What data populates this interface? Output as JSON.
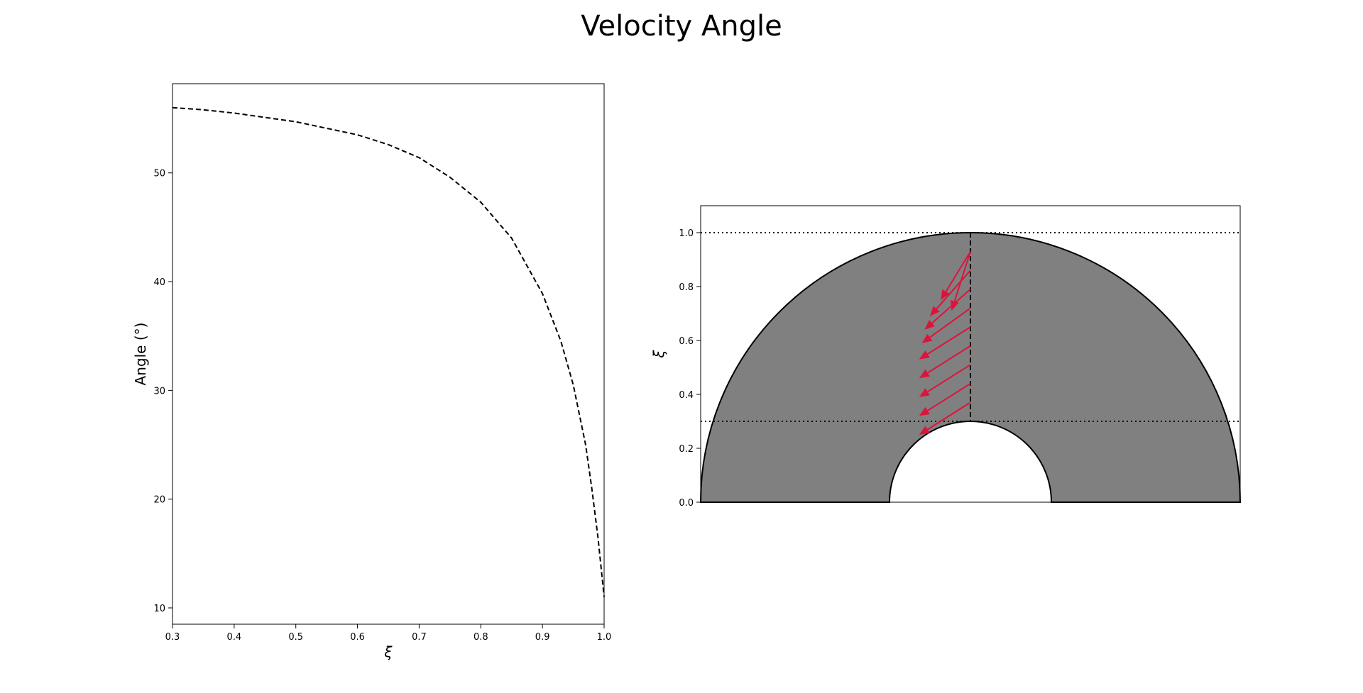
{
  "figure": {
    "title": "Velocity Angle"
  },
  "chart_data": [
    {
      "type": "line",
      "xlabel": "ξ",
      "ylabel": "Angle (°)",
      "xlim": [
        0.3,
        1.0
      ],
      "ylim": [
        8.5,
        58.2
      ],
      "xticks": [
        "0.3",
        "0.4",
        "0.5",
        "0.6",
        "0.7",
        "0.8",
        "0.9",
        "1.0"
      ],
      "yticks": [
        "10",
        "20",
        "30",
        "40",
        "50"
      ],
      "grid": false,
      "series": [
        {
          "line_style": "dashed",
          "color": "#000000",
          "x": [
            0.3,
            0.35,
            0.4,
            0.45,
            0.5,
            0.55,
            0.6,
            0.65,
            0.7,
            0.75,
            0.8,
            0.85,
            0.9,
            0.93,
            0.95,
            0.97,
            0.98,
            0.99,
            1.0
          ],
          "y": [
            56.0,
            55.8,
            55.5,
            55.1,
            54.7,
            54.1,
            53.5,
            52.6,
            51.4,
            49.6,
            47.3,
            44.0,
            38.9,
            34.5,
            30.5,
            25.0,
            21.0,
            16.5,
            11.0
          ]
        }
      ]
    },
    {
      "type": "diagram",
      "ylabel": "ξ",
      "ylim": [
        0.0,
        1.1
      ],
      "xlim": [
        -1.0,
        1.0
      ],
      "yticks": [
        "0.0",
        "0.2",
        "0.4",
        "0.6",
        "0.8",
        "1.0"
      ],
      "outer_radius": 1.0,
      "inner_radius": 0.3,
      "horizontal_dotted_lines": [
        1.0,
        0.3
      ],
      "fill_color": "#808080",
      "arrow_color": "#dc143c",
      "arrows": [
        {
          "xi": 0.93,
          "dx": -0.07,
          "dy": -0.22
        },
        {
          "xi": 0.93,
          "dx": -0.11,
          "dy": -0.18
        },
        {
          "xi": 0.86,
          "dx": -0.15,
          "dy": -0.17
        },
        {
          "xi": 0.79,
          "dx": -0.17,
          "dy": -0.15
        },
        {
          "xi": 0.72,
          "dx": -0.18,
          "dy": -0.13
        },
        {
          "xi": 0.65,
          "dx": -0.19,
          "dy": -0.12
        },
        {
          "xi": 0.58,
          "dx": -0.19,
          "dy": -0.12
        },
        {
          "xi": 0.51,
          "dx": -0.19,
          "dy": -0.12
        },
        {
          "xi": 0.44,
          "dx": -0.19,
          "dy": -0.12
        },
        {
          "xi": 0.37,
          "dx": -0.19,
          "dy": -0.12
        }
      ]
    }
  ]
}
